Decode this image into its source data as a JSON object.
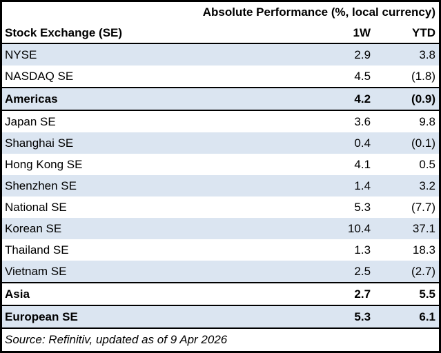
{
  "table": {
    "title": "Absolute Performance (%, local currency)",
    "columns": {
      "name": "Stock Exchange (SE)",
      "w1": "1W",
      "ytd": "YTD"
    },
    "rows": [
      {
        "name": "NYSE",
        "w1": "2.9",
        "ytd": "3.8"
      },
      {
        "name": "NASDAQ SE",
        "w1": "4.5",
        "ytd": "(1.8)"
      },
      {
        "name": "Americas",
        "w1": "4.2",
        "ytd": "(0.9)"
      },
      {
        "name": "Japan SE",
        "w1": "3.6",
        "ytd": "9.8"
      },
      {
        "name": "Shanghai SE",
        "w1": "0.4",
        "ytd": "(0.1)"
      },
      {
        "name": "Hong Kong SE",
        "w1": "4.1",
        "ytd": "0.5"
      },
      {
        "name": "Shenzhen SE",
        "w1": "1.4",
        "ytd": "3.2"
      },
      {
        "name": "National SE",
        "w1": "5.3",
        "ytd": "(7.7)"
      },
      {
        "name": "Korean SE",
        "w1": "10.4",
        "ytd": "37.1"
      },
      {
        "name": "Thailand SE",
        "w1": "1.3",
        "ytd": "18.3"
      },
      {
        "name": "Vietnam SE",
        "w1": "2.5",
        "ytd": "(2.7)"
      },
      {
        "name": "Asia",
        "w1": "2.7",
        "ytd": "5.5"
      },
      {
        "name": "European SE",
        "w1": "5.3",
        "ytd": "6.1"
      }
    ],
    "source": "Source: Refinitiv, updated as of 9 Apr 2026"
  },
  "colors": {
    "row_shade": "#dbe5f1",
    "border": "#000000",
    "text": "#000000",
    "background": "#ffffff"
  },
  "chart_data": {
    "type": "table",
    "title": "Absolute Performance (%, local currency)",
    "columns": [
      "Stock Exchange (SE)",
      "1W",
      "YTD"
    ],
    "rows": [
      [
        "NYSE",
        2.9,
        3.8
      ],
      [
        "NASDAQ SE",
        4.5,
        -1.8
      ],
      [
        "Americas",
        4.2,
        -0.9
      ],
      [
        "Japan SE",
        3.6,
        9.8
      ],
      [
        "Shanghai SE",
        0.4,
        -0.1
      ],
      [
        "Hong Kong SE",
        4.1,
        0.5
      ],
      [
        "Shenzhen SE",
        1.4,
        3.2
      ],
      [
        "National SE",
        5.3,
        -7.7
      ],
      [
        "Korean SE",
        10.4,
        37.1
      ],
      [
        "Thailand SE",
        1.3,
        18.3
      ],
      [
        "Vietnam SE",
        2.5,
        -2.7
      ],
      [
        "Asia",
        2.7,
        5.5
      ],
      [
        "European SE",
        5.3,
        6.1
      ]
    ],
    "summary_rows": [
      "Americas",
      "Asia",
      "European SE"
    ],
    "negative_format": "parentheses",
    "source": "Source: Refinitiv, updated as of 9 Apr 2026"
  }
}
